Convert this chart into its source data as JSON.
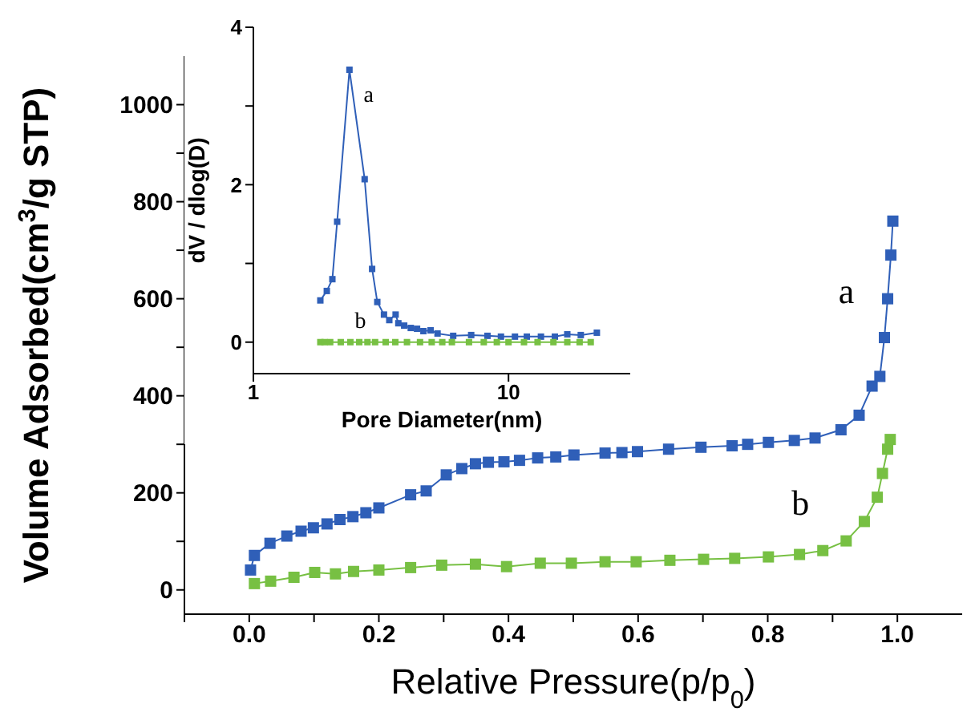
{
  "chart_data": [
    {
      "type": "line",
      "xlabel": "Relative Pressure(p/p$_{0}$)",
      "ylabel": "Volume Adsorbed(cm$^{3}$/g STP)",
      "marker": "square",
      "line_style": "solid",
      "grid": false,
      "legend": false,
      "xlim": [
        -0.1,
        1.1
      ],
      "ylim": [
        -50,
        1100
      ],
      "xticks": [
        {
          "value": -0.1,
          "label": null
        },
        {
          "value": 0,
          "label": "0.0"
        },
        {
          "value": 0.1,
          "label": null
        },
        {
          "value": 0.2,
          "label": "0.2"
        },
        {
          "value": 0.3,
          "label": null
        },
        {
          "value": 0.4,
          "label": "0.4"
        },
        {
          "value": 0.5,
          "label": null
        },
        {
          "value": 0.6,
          "label": "0.6"
        },
        {
          "value": 0.7,
          "label": null
        },
        {
          "value": 0.8,
          "label": "0.8"
        },
        {
          "value": 0.9,
          "label": null
        },
        {
          "value": 1.0,
          "label": "1.0"
        }
      ],
      "yticks": [
        0,
        {
          "value": 100,
          "label": null
        },
        200,
        {
          "value": 300,
          "label": null
        },
        400,
        {
          "value": 500,
          "label": null
        },
        600,
        {
          "value": 700,
          "label": null
        },
        800,
        {
          "value": 900,
          "label": null
        },
        1000
      ],
      "series": [
        {
          "name": "a",
          "color": "#2f5fb8",
          "x": [
            0.002,
            0.008,
            0.032,
            0.058,
            0.08,
            0.099,
            0.12,
            0.14,
            0.16,
            0.18,
            0.2,
            0.249,
            0.273,
            0.304,
            0.328,
            0.349,
            0.369,
            0.393,
            0.417,
            0.445,
            0.473,
            0.501,
            0.549,
            0.575,
            0.599,
            0.647,
            0.697,
            0.745,
            0.769,
            0.801,
            0.841,
            0.873,
            0.913,
            0.941,
            0.961,
            0.973,
            0.98,
            0.985,
            0.99,
            0.993
          ],
          "values": [
            41,
            71,
            96,
            111,
            121,
            128,
            136,
            145,
            151,
            159,
            169,
            196,
            204,
            237,
            250,
            260,
            263,
            264,
            267,
            272,
            274,
            278,
            282,
            283,
            285,
            290,
            294,
            297,
            300,
            304,
            308,
            313,
            330,
            360,
            420,
            440,
            520,
            600,
            690,
            760
          ]
        },
        {
          "name": "b",
          "color": "#77c043",
          "x": [
            0.008,
            0.033,
            0.069,
            0.101,
            0.133,
            0.161,
            0.2,
            0.249,
            0.297,
            0.349,
            0.397,
            0.449,
            0.497,
            0.549,
            0.597,
            0.649,
            0.701,
            0.749,
            0.801,
            0.849,
            0.885,
            0.921,
            0.949,
            0.969,
            0.977,
            0.985,
            0.989
          ],
          "values": [
            13,
            18,
            26,
            36,
            33,
            38,
            41,
            46,
            51,
            53,
            48,
            55,
            55,
            58,
            58,
            61,
            63,
            65,
            68,
            73,
            81,
            101,
            141,
            191,
            240,
            290,
            310
          ]
        }
      ]
    },
    {
      "type": "line",
      "xlabel": "Pore Diameter(nm)",
      "ylabel": "dV / dlog(D)",
      "marker": "square",
      "line_style": "solid",
      "log": "x",
      "grid": false,
      "legend": false,
      "xlim": [
        1,
        30
      ],
      "ylim": [
        -0.4,
        4
      ],
      "xticks": [
        1,
        10
      ],
      "yticks": [
        0,
        {
          "value": 1,
          "label": null
        },
        2,
        {
          "value": 3,
          "label": null
        },
        4
      ],
      "series": [
        {
          "name": "a",
          "color": "#2f5fb8",
          "x": [
            1.83,
            1.94,
            2.04,
            2.13,
            2.38,
            2.73,
            2.92,
            3.06,
            3.25,
            3.41,
            3.61,
            3.7,
            3.9,
            4.14,
            4.38,
            4.64,
            4.95,
            5.27,
            6.07,
            7.14,
            8.27,
            9.34,
            10.6,
            11.8,
            13.4,
            15.2,
            17.0,
            19.2,
            22.2
          ],
          "values": [
            0.53,
            0.65,
            0.8,
            1.53,
            3.46,
            2.07,
            0.93,
            0.51,
            0.35,
            0.28,
            0.35,
            0.24,
            0.21,
            0.18,
            0.17,
            0.14,
            0.15,
            0.11,
            0.08,
            0.09,
            0.08,
            0.07,
            0.07,
            0.07,
            0.07,
            0.07,
            0.1,
            0.09,
            0.12
          ]
        },
        {
          "name": "b",
          "color": "#77c043",
          "x": [
            1.83,
            1.9,
            2.0,
            2.2,
            2.4,
            2.6,
            2.8,
            3.0,
            3.3,
            3.6,
            4.0,
            4.5,
            5.0,
            5.5,
            6.0,
            7.0,
            8.0,
            9.0,
            10.0,
            11.5,
            13.0,
            15.0,
            17.0,
            19.0,
            21.0
          ],
          "values": [
            0,
            0,
            0,
            0,
            0,
            0,
            0,
            0,
            0,
            0,
            0,
            0,
            0,
            0,
            0,
            0,
            0,
            0,
            0,
            0,
            0,
            0,
            0,
            0,
            0
          ]
        }
      ]
    }
  ]
}
